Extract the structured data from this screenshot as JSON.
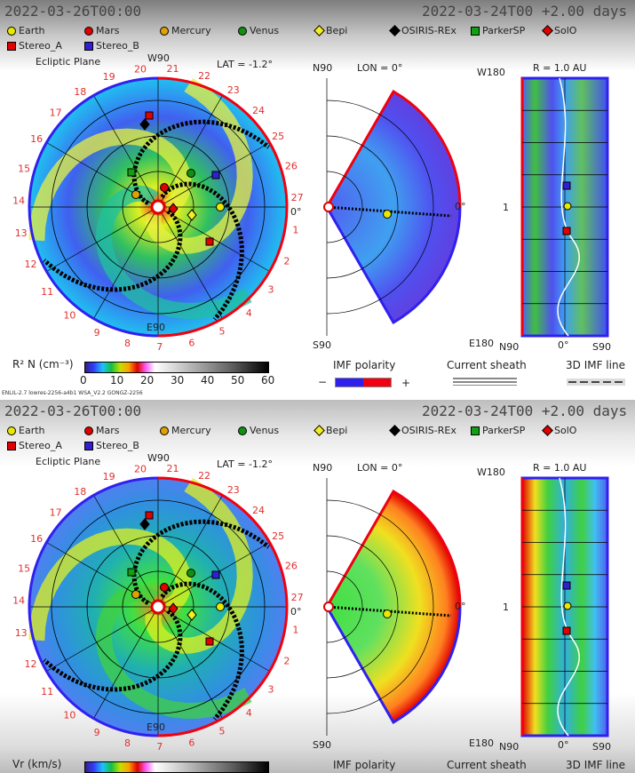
{
  "colors": {
    "earth": "#e8e800",
    "mars": "#e00000",
    "mercury": "#e0a000",
    "venus": "#109010",
    "bepi": "#f0f020",
    "osiris": "#000000",
    "parker": "#10a010",
    "solo": "#e00000",
    "stereo_a": "#e00000",
    "stereo_b": "#3020d0",
    "imf_minus": "#3020f0",
    "imf_plus": "#f00010"
  },
  "legend": [
    {
      "label": "Earth",
      "icon": "circle",
      "color": "#e8e800"
    },
    {
      "label": "Mars",
      "icon": "circle",
      "color": "#e00000"
    },
    {
      "label": "Mercury",
      "icon": "circle",
      "color": "#e0a000"
    },
    {
      "label": "Venus",
      "icon": "circle",
      "color": "#109010"
    },
    {
      "label": "Bepi",
      "icon": "diamond",
      "color": "#f0f020"
    },
    {
      "label": "OSIRIS-REx",
      "icon": "diamond",
      "color": "#000000"
    },
    {
      "label": "ParkerSP",
      "icon": "square",
      "color": "#10a010"
    },
    {
      "label": "SolO",
      "icon": "diamond",
      "color": "#e00000"
    },
    {
      "label": "Stereo_A",
      "icon": "square",
      "color": "#e00000"
    },
    {
      "label": "Stereo_B",
      "icon": "square",
      "color": "#3020d0"
    }
  ],
  "carrington_labels": [
    "20",
    "21",
    "22",
    "23",
    "24",
    "25",
    "26",
    "27",
    "1",
    "2",
    "3",
    "4",
    "5",
    "6",
    "7",
    "8",
    "9",
    "10",
    "11",
    "12",
    "13",
    "14",
    "15",
    "16",
    "17",
    "18",
    "19"
  ],
  "panels": [
    {
      "time": "2022-03-26T00:00",
      "run_time": "2022-03-24T00 +2.00 days",
      "ecliptic": "Ecliptic Plane",
      "w90": "W90",
      "lat": "LAT = -1.2°",
      "e90": "E90",
      "zero": "0°",
      "n90": "N90",
      "lon": "LON = 0°",
      "s90": "S90",
      "w180": "W180",
      "radius": "R = 1.0 AU",
      "e180": "E180",
      "map_n90": "N90",
      "map_zero": "0°",
      "map_s90": "S90",
      "map_one": "1",
      "cbar_label": "R² N (cm⁻³)",
      "cbar_ticks": [
        "0",
        "10",
        "20",
        "30",
        "40",
        "50",
        "60"
      ],
      "imf_polarity": "IMF polarity",
      "minus": "−",
      "plus": "+",
      "current_sheath": "Current sheath",
      "imf_line": "3D IMF line",
      "footnote": "ENLIL-2.7 lowres-2256-a4b1 WSA_V2.2 GONGZ-2256",
      "quantity": "density"
    },
    {
      "time": "2022-03-26T00:00",
      "run_time": "2022-03-24T00 +2.00 days",
      "ecliptic": "Ecliptic Plane",
      "w90": "W90",
      "lat": "LAT = -1.2°",
      "e90": "E90",
      "zero": "0°",
      "n90": "N90",
      "lon": "LON = 0°",
      "s90": "S90",
      "w180": "W180",
      "radius": "R = 1.0 AU",
      "e180": "E180",
      "map_n90": "N90",
      "map_zero": "0°",
      "map_s90": "S90",
      "map_one": "1",
      "cbar_label": "Vr (km/s)",
      "imf_polarity": "IMF polarity",
      "current_sheath": "Current sheath",
      "imf_line": "3D IMF line",
      "quantity": "velocity"
    }
  ]
}
